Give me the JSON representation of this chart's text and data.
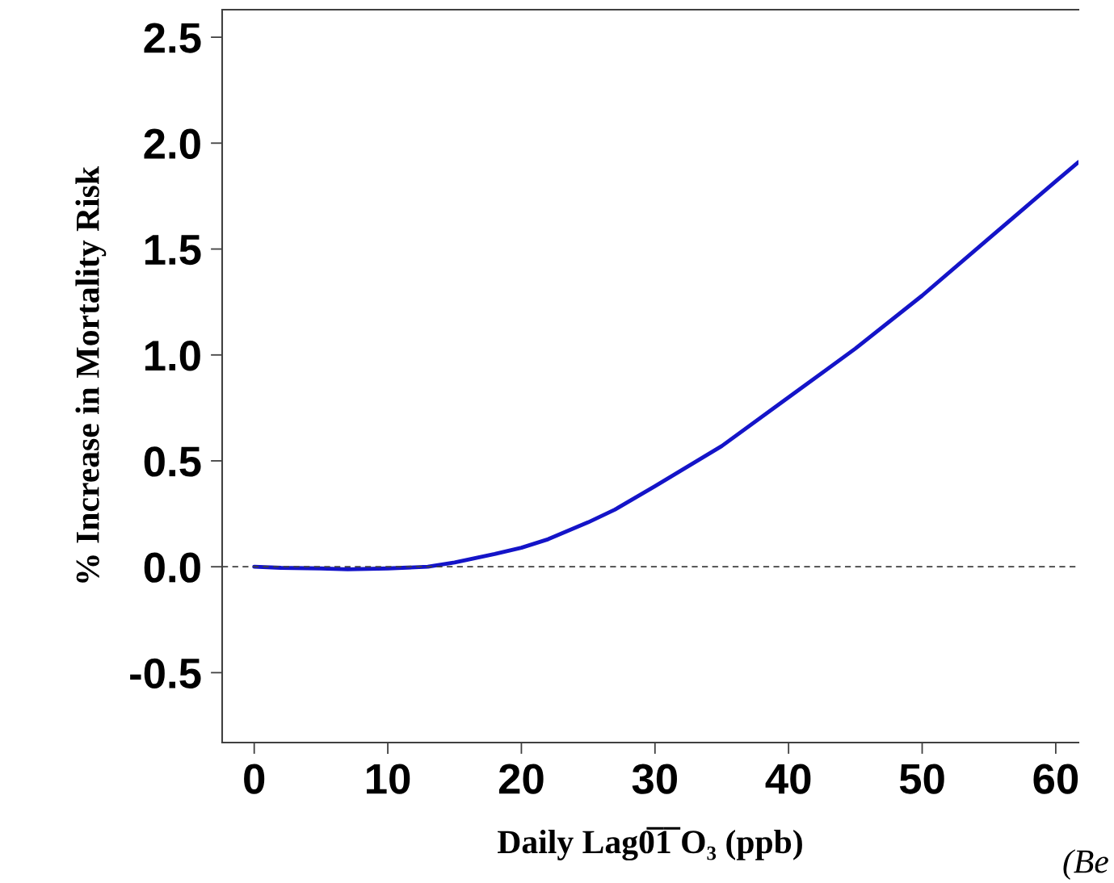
{
  "chart_data": {
    "type": "line",
    "xlabel": "Daily Lag0̅1̅ O₃ (ppb)",
    "ylabel": "% Increase in Mortality Risk",
    "x": [
      0,
      2,
      5,
      7,
      10,
      13,
      15,
      18,
      20,
      22,
      25,
      27,
      30,
      35,
      40,
      45,
      50,
      55,
      60,
      61.7
    ],
    "series": [
      {
        "color": "#1414c8",
        "values": [
          0,
          -0.005,
          -0.008,
          -0.012,
          -0.008,
          0,
          0.02,
          0.06,
          0.09,
          0.13,
          0.21,
          0.27,
          0.38,
          0.57,
          0.8,
          1.03,
          1.28,
          1.55,
          1.82,
          1.91
        ]
      }
    ],
    "xlim": [
      -2.4,
      61.7
    ],
    "ylim": [
      -0.83,
      2.63
    ],
    "xticks": [
      0,
      10,
      20,
      30,
      40,
      50,
      60
    ],
    "yticks": [
      -0.5,
      {
        "value": 0,
        "label": "0.0"
      },
      0.5,
      {
        "value": 1,
        "label": "1.0"
      },
      1.5,
      {
        "value": 2,
        "label": "2.0"
      },
      2.5
    ],
    "ref_lines": [
      {
        "axis": "y",
        "value": 0,
        "color": "#404040",
        "line_style": "dashed"
      }
    ],
    "annotations": [
      "(Be"
    ],
    "grid": false,
    "legend": false,
    "marker": "none",
    "line_style": "solid"
  }
}
